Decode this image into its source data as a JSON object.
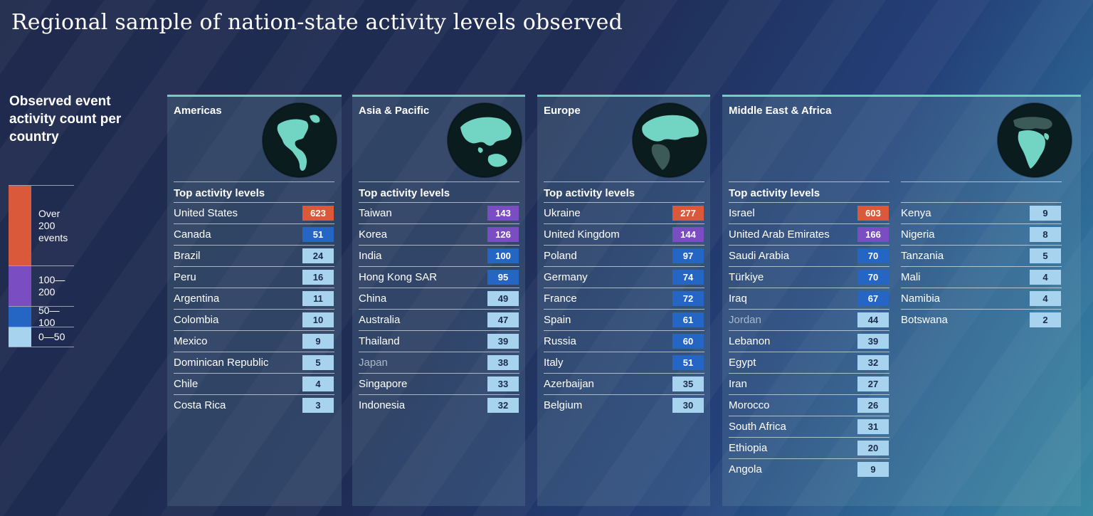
{
  "title": "Regional sample of nation-state activity levels observed",
  "legend": {
    "title": "Observed event activity count per country",
    "items": [
      {
        "label": "Over 200 events",
        "color": "#d9593a"
      },
      {
        "label": "100—200",
        "color": "#7a4ec2"
      },
      {
        "label": "50—100",
        "color": "#2565c4"
      },
      {
        "label": "0—50",
        "color": "#a7d3ee"
      }
    ]
  },
  "table_header": "Top activity levels",
  "chart_data": {
    "type": "table",
    "title": "Regional sample of nation-state activity levels observed",
    "regions": [
      {
        "name": "Americas",
        "countries": [
          {
            "name": "United States",
            "value": 623
          },
          {
            "name": "Canada",
            "value": 51
          },
          {
            "name": "Brazil",
            "value": 24
          },
          {
            "name": "Peru",
            "value": 16
          },
          {
            "name": "Argentina",
            "value": 11
          },
          {
            "name": "Colombia",
            "value": 10
          },
          {
            "name": "Mexico",
            "value": 9
          },
          {
            "name": "Dominican Republic",
            "value": 5
          },
          {
            "name": "Chile",
            "value": 4
          },
          {
            "name": "Costa Rica",
            "value": 3
          }
        ]
      },
      {
        "name": "Asia & Pacific",
        "countries": [
          {
            "name": "Taiwan",
            "value": 143
          },
          {
            "name": "Korea",
            "value": 126
          },
          {
            "name": "India",
            "value": 100
          },
          {
            "name": "Hong Kong SAR",
            "value": 95
          },
          {
            "name": "China",
            "value": 49
          },
          {
            "name": "Australia",
            "value": 47
          },
          {
            "name": "Thailand",
            "value": 39
          },
          {
            "name": "Japan",
            "value": 38
          },
          {
            "name": "Singapore",
            "value": 33
          },
          {
            "name": "Indonesia",
            "value": 32
          }
        ]
      },
      {
        "name": "Europe",
        "countries": [
          {
            "name": "Ukraine",
            "value": 277
          },
          {
            "name": "United Kingdom",
            "value": 144
          },
          {
            "name": "Poland",
            "value": 97
          },
          {
            "name": "Germany",
            "value": 74
          },
          {
            "name": "France",
            "value": 72
          },
          {
            "name": "Spain",
            "value": 61
          },
          {
            "name": "Russia",
            "value": 60
          },
          {
            "name": "Italy",
            "value": 51
          },
          {
            "name": "Azerbaijan",
            "value": 35
          },
          {
            "name": "Belgium",
            "value": 30
          }
        ]
      },
      {
        "name": "Middle East & Africa",
        "countries": [
          {
            "name": "Israel",
            "value": 603
          },
          {
            "name": "United Arab Emirates",
            "value": 166
          },
          {
            "name": "Saudi Arabia",
            "value": 70
          },
          {
            "name": "Türkiye",
            "value": 70
          },
          {
            "name": "Iraq",
            "value": 67
          },
          {
            "name": "Jordan",
            "value": 44
          },
          {
            "name": "Lebanon",
            "value": 39
          },
          {
            "name": "Egypt",
            "value": 32
          },
          {
            "name": "Iran",
            "value": 27
          },
          {
            "name": "Morocco",
            "value": 26
          },
          {
            "name": "South Africa",
            "value": 31
          },
          {
            "name": "Ethiopia",
            "value": 20
          },
          {
            "name": "Angola",
            "value": 9
          },
          {
            "name": "Kenya",
            "value": 9
          },
          {
            "name": "Nigeria",
            "value": 8
          },
          {
            "name": "Tanzania",
            "value": 5
          },
          {
            "name": "Mali",
            "value": 4
          },
          {
            "name": "Namibia",
            "value": 4
          },
          {
            "name": "Botswana",
            "value": 2
          }
        ]
      }
    ]
  }
}
